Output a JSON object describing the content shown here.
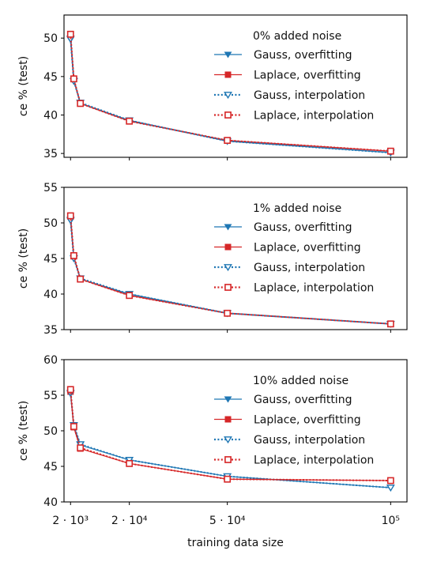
{
  "chart_data": [
    {
      "type": "line",
      "noise_label": "0% added noise",
      "ylabel": "ce % (test)",
      "xlabel": "",
      "ylim": [
        34.5,
        53
      ],
      "yticks": [
        35,
        40,
        45,
        50
      ],
      "x": [
        2000,
        3000,
        5000,
        20000,
        50000,
        100000
      ],
      "series": [
        {
          "name": "Gauss, overfitting",
          "values": [
            49.8,
            44.5,
            41.5,
            39.3,
            36.6,
            35.1
          ]
        },
        {
          "name": "Laplace, overfitting",
          "values": [
            50.4,
            44.7,
            41.5,
            39.2,
            36.7,
            35.3
          ]
        },
        {
          "name": "Gauss, interpolation",
          "values": [
            49.9,
            44.4,
            41.6,
            39.3,
            36.6,
            35.1
          ]
        },
        {
          "name": "Laplace, interpolation",
          "values": [
            50.5,
            44.7,
            41.5,
            39.2,
            36.7,
            35.3
          ]
        }
      ]
    },
    {
      "type": "line",
      "noise_label": "1% added noise",
      "ylabel": "ce % (test)",
      "xlabel": "",
      "ylim": [
        35,
        55
      ],
      "yticks": [
        35,
        40,
        45,
        50,
        55
      ],
      "x": [
        2000,
        3000,
        5000,
        20000,
        50000,
        100000
      ],
      "series": [
        {
          "name": "Gauss, overfitting",
          "values": [
            50.3,
            45.1,
            42.1,
            40.0,
            37.3,
            35.8
          ]
        },
        {
          "name": "Laplace, overfitting",
          "values": [
            50.9,
            45.3,
            42.1,
            39.8,
            37.3,
            35.8
          ]
        },
        {
          "name": "Gauss, interpolation",
          "values": [
            50.4,
            45.0,
            42.2,
            40.0,
            37.3,
            35.8
          ]
        },
        {
          "name": "Laplace, interpolation",
          "values": [
            51.0,
            45.4,
            42.1,
            39.8,
            37.3,
            35.8
          ]
        }
      ]
    },
    {
      "type": "line",
      "noise_label": "10% added noise",
      "ylabel": "ce % (test)",
      "xlabel": "training data size",
      "ylim": [
        40,
        60
      ],
      "yticks": [
        40,
        45,
        50,
        55,
        60
      ],
      "x": [
        2000,
        3000,
        5000,
        20000,
        50000,
        100000
      ],
      "xticks": [
        {
          "value": 2000,
          "label": "2 · 10³"
        },
        {
          "value": 20000,
          "label": "2 · 10⁴"
        },
        {
          "value": 50000,
          "label": "5 · 10⁴"
        },
        {
          "value": 100000,
          "label": "10⁵"
        }
      ],
      "series": [
        {
          "name": "Gauss, overfitting",
          "values": [
            55.2,
            50.7,
            48.0,
            45.9,
            43.6,
            42.0
          ]
        },
        {
          "name": "Laplace, overfitting",
          "values": [
            55.5,
            50.5,
            47.5,
            45.4,
            43.2,
            43.0
          ]
        },
        {
          "name": "Gauss, interpolation",
          "values": [
            55.3,
            50.8,
            48.1,
            45.9,
            43.6,
            42.0
          ]
        },
        {
          "name": "Laplace, interpolation",
          "values": [
            55.8,
            50.6,
            47.6,
            45.4,
            43.2,
            43.0
          ]
        }
      ]
    }
  ],
  "style": {
    "gauss_color": "#1f77b4",
    "laplace_color": "#d62728",
    "gauss_marker": "triangle-down",
    "laplace_marker": "square",
    "overfitting_line": "solid",
    "interpolation_line": "dotted",
    "interpolation_marker": "hollow",
    "x_scale": "linear",
    "grid": false,
    "legend_position": "upper-right"
  }
}
